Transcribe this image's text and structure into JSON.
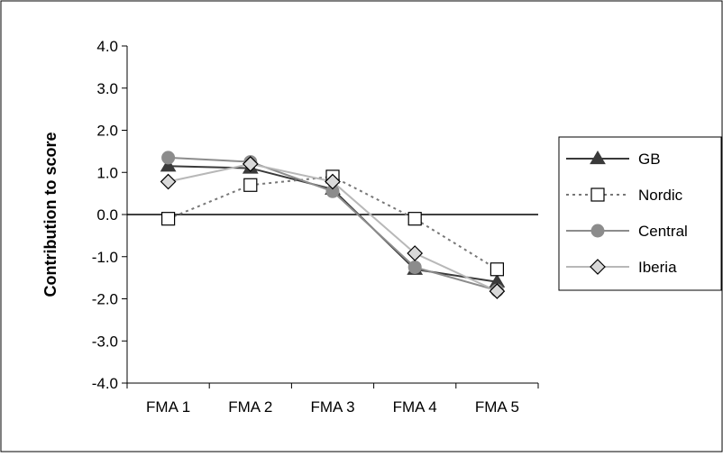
{
  "chart_data": {
    "type": "line",
    "title": "",
    "xlabel": "",
    "ylabel": "Contribution to score",
    "categories": [
      "FMA  1",
      "FMA 2",
      "FMA 3",
      "FMA 4",
      "FMA 5"
    ],
    "ylim": [
      -4.0,
      4.0
    ],
    "yticks": [
      "4.0",
      "3.0",
      "2.0",
      "1.0",
      "0.0",
      "-1.0",
      "-2.0",
      "-3.0",
      "-4.0"
    ],
    "ytick_values": [
      4,
      3,
      2,
      1,
      0,
      -1,
      -2,
      -3,
      -4
    ],
    "grid": false,
    "legend_position": "right",
    "series": [
      {
        "name": "GB",
        "values": [
          1.15,
          1.1,
          0.6,
          -1.3,
          -1.6
        ],
        "color": "#3a3a3a",
        "dash": "solid",
        "marker": "triangle"
      },
      {
        "name": "Nordic",
        "values": [
          -0.1,
          0.7,
          0.9,
          -0.1,
          -1.3
        ],
        "color": "#777777",
        "dash": "dashed",
        "marker": "square"
      },
      {
        "name": "Central",
        "values": [
          1.35,
          1.25,
          0.55,
          -1.25,
          -1.8
        ],
        "color": "#8c8c8c",
        "dash": "solid",
        "marker": "circle"
      },
      {
        "name": "Iberia",
        "values": [
          0.78,
          1.2,
          0.78,
          -0.92,
          -1.82
        ],
        "color": "#b8b8b8",
        "dash": "solid",
        "marker": "diamond"
      }
    ]
  }
}
